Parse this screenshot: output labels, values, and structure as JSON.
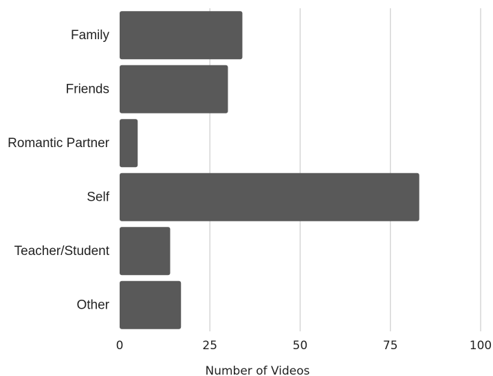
{
  "chart_data": {
    "type": "bar",
    "orientation": "horizontal",
    "categories": [
      "Family",
      "Friends",
      "Romantic Partner",
      "Self",
      "Teacher/Student",
      "Other"
    ],
    "values": [
      34,
      30,
      5,
      83,
      14,
      17
    ],
    "xlabel": "Number of Videos",
    "ylabel": "",
    "xlim": [
      0,
      100
    ],
    "xticks": [
      0,
      25,
      50,
      75,
      100
    ],
    "xtick_labels": [
      "0",
      "25",
      "50",
      "75",
      "100"
    ],
    "grid": "vertical",
    "bar_color": "#595959",
    "grid_color": "#cfcfcf"
  }
}
